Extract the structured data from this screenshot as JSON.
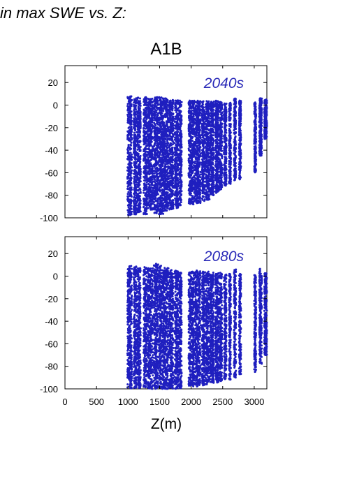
{
  "figure_title": "in max SWE vs. Z:",
  "panel_title": "A1B",
  "x_axis_title": "Z(m)",
  "marker_color": "#1f1fbf",
  "chart_data": [
    {
      "type": "scatter",
      "label": "2040s",
      "xlim": [
        0,
        3200
      ],
      "ylim": [
        -100,
        35
      ],
      "yticks": [
        20,
        0,
        -20,
        -40,
        -60,
        -80,
        -100
      ],
      "xticks": [
        0,
        500,
        1000,
        1500,
        2000,
        2500,
        3000
      ],
      "show_xtick_labels": false,
      "groups": [
        {
          "x": [
            990,
            1060
          ],
          "y": [
            -98,
            8
          ]
        },
        {
          "x": [
            1090,
            1135
          ],
          "y": [
            -97,
            8
          ]
        },
        {
          "x": [
            1145,
            1200
          ],
          "y": [
            -95,
            7
          ]
        },
        {
          "x": [
            1245,
            1300
          ],
          "y": [
            -97,
            7
          ]
        },
        {
          "x": [
            1310,
            1395
          ],
          "y": [
            -93,
            6
          ]
        },
        {
          "x": [
            1410,
            1480
          ],
          "y": [
            -96,
            7
          ]
        },
        {
          "x": [
            1490,
            1560
          ],
          "y": [
            -97,
            7
          ]
        },
        {
          "x": [
            1560,
            1640
          ],
          "y": [
            -94,
            6
          ]
        },
        {
          "x": [
            1650,
            1720
          ],
          "y": [
            -93,
            5
          ]
        },
        {
          "x": [
            1740,
            1800
          ],
          "y": [
            -92,
            5
          ]
        },
        {
          "x": [
            1810,
            1850
          ],
          "y": [
            -90,
            4
          ]
        },
        {
          "x": [
            1960,
            2050
          ],
          "y": [
            -88,
            4
          ]
        },
        {
          "x": [
            2060,
            2150
          ],
          "y": [
            -87,
            4
          ]
        },
        {
          "x": [
            2170,
            2220
          ],
          "y": [
            -85,
            4
          ]
        },
        {
          "x": [
            2230,
            2290
          ],
          "y": [
            -84,
            4
          ]
        },
        {
          "x": [
            2300,
            2360
          ],
          "y": [
            -80,
            4
          ]
        },
        {
          "x": [
            2380,
            2440
          ],
          "y": [
            -78,
            4
          ]
        },
        {
          "x": [
            2450,
            2490
          ],
          "y": [
            -75,
            3
          ]
        },
        {
          "x": [
            2520,
            2560
          ],
          "y": [
            -72,
            2
          ]
        },
        {
          "x": [
            2600,
            2630
          ],
          "y": [
            -70,
            2
          ]
        },
        {
          "x": [
            2680,
            2710
          ],
          "y": [
            -68,
            6
          ]
        },
        {
          "x": [
            2760,
            2790
          ],
          "y": [
            -66,
            4
          ]
        },
        {
          "x": [
            3000,
            3030
          ],
          "y": [
            -60,
            3
          ]
        },
        {
          "x": [
            3080,
            3120
          ],
          "y": [
            -45,
            6
          ]
        },
        {
          "x": [
            3160,
            3200
          ],
          "y": [
            -30,
            5
          ]
        }
      ]
    },
    {
      "type": "scatter",
      "label": "2080s",
      "xlim": [
        0,
        3200
      ],
      "ylim": [
        -100,
        35
      ],
      "yticks": [
        20,
        0,
        -20,
        -40,
        -60,
        -80,
        -100
      ],
      "xticks": [
        0,
        500,
        1000,
        1500,
        2000,
        2500,
        3000
      ],
      "xtick_labels": [
        "0",
        "500",
        "1000",
        "1500",
        "2000",
        "2500",
        "3000"
      ],
      "groups": [
        {
          "x": [
            990,
            1060
          ],
          "y": [
            -100,
            10
          ]
        },
        {
          "x": [
            1090,
            1135
          ],
          "y": [
            -100,
            9
          ]
        },
        {
          "x": [
            1145,
            1200
          ],
          "y": [
            -100,
            8
          ]
        },
        {
          "x": [
            1245,
            1300
          ],
          "y": [
            -100,
            8
          ]
        },
        {
          "x": [
            1310,
            1395
          ],
          "y": [
            -100,
            7
          ]
        },
        {
          "x": [
            1410,
            1480
          ],
          "y": [
            -100,
            11
          ]
        },
        {
          "x": [
            1490,
            1560
          ],
          "y": [
            -100,
            10
          ]
        },
        {
          "x": [
            1560,
            1640
          ],
          "y": [
            -100,
            8
          ]
        },
        {
          "x": [
            1650,
            1720
          ],
          "y": [
            -100,
            6
          ]
        },
        {
          "x": [
            1740,
            1800
          ],
          "y": [
            -100,
            5
          ]
        },
        {
          "x": [
            1810,
            1850
          ],
          "y": [
            -100,
            4
          ]
        },
        {
          "x": [
            1960,
            2050
          ],
          "y": [
            -98,
            4
          ]
        },
        {
          "x": [
            2060,
            2150
          ],
          "y": [
            -98,
            5
          ]
        },
        {
          "x": [
            2170,
            2220
          ],
          "y": [
            -97,
            4
          ]
        },
        {
          "x": [
            2230,
            2290
          ],
          "y": [
            -96,
            4
          ]
        },
        {
          "x": [
            2300,
            2360
          ],
          "y": [
            -95,
            4
          ]
        },
        {
          "x": [
            2380,
            2440
          ],
          "y": [
            -95,
            3
          ]
        },
        {
          "x": [
            2450,
            2490
          ],
          "y": [
            -94,
            3
          ]
        },
        {
          "x": [
            2520,
            2560
          ],
          "y": [
            -93,
            2
          ]
        },
        {
          "x": [
            2600,
            2630
          ],
          "y": [
            -92,
            2
          ]
        },
        {
          "x": [
            2680,
            2710
          ],
          "y": [
            -90,
            6
          ]
        },
        {
          "x": [
            2760,
            2790
          ],
          "y": [
            -88,
            2
          ]
        },
        {
          "x": [
            3000,
            3030
          ],
          "y": [
            -85,
            2
          ]
        },
        {
          "x": [
            3080,
            3120
          ],
          "y": [
            -78,
            8
          ]
        },
        {
          "x": [
            3160,
            3200
          ],
          "y": [
            -70,
            3
          ]
        }
      ]
    }
  ]
}
